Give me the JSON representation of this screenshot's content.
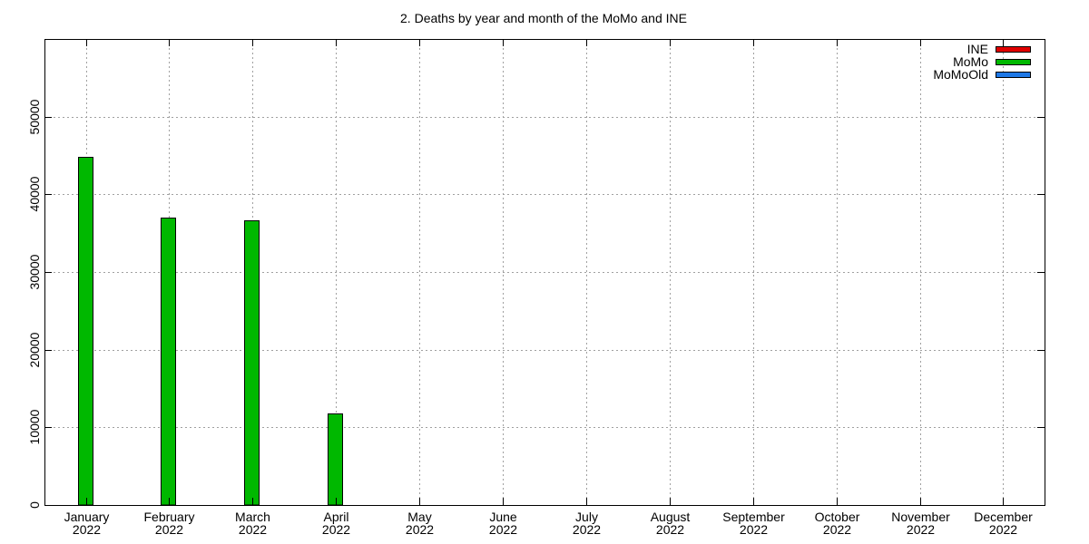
{
  "chart_data": {
    "type": "bar",
    "title": "2. Deaths by year and month of the MoMo and INE",
    "xlabel": "",
    "ylabel": "",
    "ylim": [
      0,
      60000
    ],
    "yticks": [
      0,
      10000,
      20000,
      30000,
      40000,
      50000
    ],
    "categories": [
      [
        "January",
        "2022"
      ],
      [
        "February",
        "2022"
      ],
      [
        "March",
        "2022"
      ],
      [
        "April",
        "2022"
      ],
      [
        "May",
        "2022"
      ],
      [
        "June",
        "2022"
      ],
      [
        "July",
        "2022"
      ],
      [
        "August",
        "2022"
      ],
      [
        "September",
        "2022"
      ],
      [
        "October",
        "2022"
      ],
      [
        "November",
        "2022"
      ],
      [
        "December",
        "2022"
      ]
    ],
    "series": [
      {
        "name": "INE",
        "color": "#e00000",
        "values": [
          null,
          null,
          null,
          null,
          null,
          null,
          null,
          null,
          null,
          null,
          null,
          null
        ]
      },
      {
        "name": "MoMo",
        "color": "#00b800",
        "values": [
          44800,
          37000,
          36600,
          11800,
          null,
          null,
          null,
          null,
          null,
          null,
          null,
          null
        ]
      },
      {
        "name": "MoMoOld",
        "color": "#1e78e6",
        "values": [
          null,
          null,
          null,
          null,
          null,
          null,
          null,
          null,
          null,
          null,
          null,
          null
        ]
      }
    ],
    "grid": true,
    "legend_position": "top-right"
  }
}
